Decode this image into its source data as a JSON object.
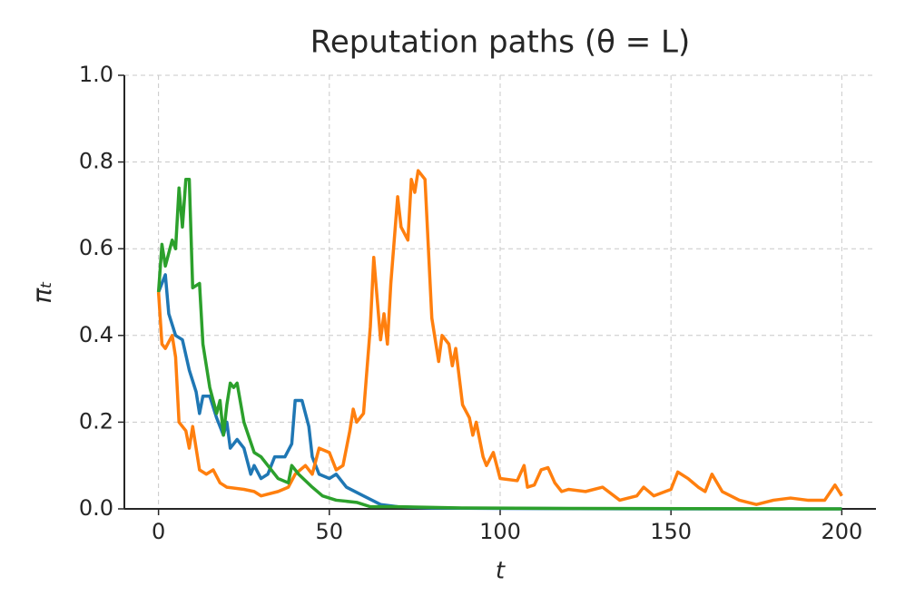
{
  "chart_data": {
    "type": "line",
    "title": "Reputation paths (θ = L)",
    "xlabel": "t",
    "ylabel": "πₜ",
    "xlim": [
      -10,
      210
    ],
    "ylim": [
      0,
      1
    ],
    "xticks": [
      0,
      50,
      100,
      150,
      200
    ],
    "yticks": [
      {
        "value": 0,
        "label": "0.0"
      },
      {
        "value": 0.2,
        "label": "0.2"
      },
      {
        "value": 0.4,
        "label": "0.4"
      },
      {
        "value": 0.6,
        "label": "0.6"
      },
      {
        "value": 0.8,
        "label": "0.8"
      },
      {
        "value": 1,
        "label": "1.0"
      }
    ],
    "grid": true,
    "series": [
      {
        "color": "#1f77b4",
        "x": [
          0,
          2,
          3,
          5,
          7,
          9,
          11,
          12,
          13,
          15,
          17,
          19,
          20,
          21,
          23,
          25,
          27,
          28,
          30,
          32,
          34,
          37,
          39,
          40,
          42,
          44,
          45,
          47,
          50,
          52,
          55,
          60,
          65,
          70,
          80,
          100,
          150,
          200
        ],
        "values": [
          0.5,
          0.54,
          0.45,
          0.4,
          0.39,
          0.32,
          0.27,
          0.22,
          0.26,
          0.26,
          0.21,
          0.17,
          0.2,
          0.14,
          0.16,
          0.14,
          0.08,
          0.1,
          0.07,
          0.08,
          0.12,
          0.12,
          0.15,
          0.25,
          0.25,
          0.19,
          0.12,
          0.08,
          0.07,
          0.08,
          0.05,
          0.03,
          0.01,
          0.005,
          0.002,
          0.001,
          0,
          0
        ]
      },
      {
        "color": "#ff7f0e",
        "x": [
          0,
          1,
          2,
          4,
          5,
          6,
          8,
          9,
          10,
          11,
          12,
          14,
          16,
          18,
          20,
          25,
          28,
          30,
          35,
          38,
          40,
          43,
          45,
          47,
          50,
          52,
          54,
          56,
          57,
          58,
          60,
          62,
          63,
          65,
          66,
          67,
          68,
          70,
          71,
          73,
          74,
          75,
          76,
          78,
          80,
          81,
          82,
          83,
          85,
          86,
          87,
          89,
          91,
          92,
          93,
          95,
          96,
          98,
          100,
          105,
          107,
          108,
          110,
          112,
          114,
          116,
          118,
          120,
          125,
          130,
          135,
          140,
          142,
          145,
          150,
          152,
          155,
          158,
          160,
          162,
          165,
          170,
          175,
          180,
          185,
          190,
          195,
          198,
          200
        ],
        "values": [
          0.5,
          0.38,
          0.37,
          0.4,
          0.35,
          0.2,
          0.18,
          0.14,
          0.19,
          0.14,
          0.09,
          0.08,
          0.09,
          0.06,
          0.05,
          0.045,
          0.04,
          0.03,
          0.04,
          0.05,
          0.08,
          0.1,
          0.08,
          0.14,
          0.13,
          0.09,
          0.1,
          0.18,
          0.23,
          0.2,
          0.22,
          0.42,
          0.58,
          0.39,
          0.45,
          0.38,
          0.52,
          0.72,
          0.65,
          0.62,
          0.76,
          0.73,
          0.78,
          0.76,
          0.44,
          0.39,
          0.34,
          0.4,
          0.38,
          0.33,
          0.37,
          0.24,
          0.21,
          0.17,
          0.2,
          0.12,
          0.1,
          0.13,
          0.07,
          0.065,
          0.1,
          0.05,
          0.055,
          0.09,
          0.095,
          0.06,
          0.04,
          0.045,
          0.04,
          0.05,
          0.02,
          0.03,
          0.05,
          0.03,
          0.045,
          0.085,
          0.07,
          0.05,
          0.04,
          0.08,
          0.04,
          0.02,
          0.01,
          0.02,
          0.025,
          0.02,
          0.02,
          0.055,
          0.03
        ]
      },
      {
        "color": "#2ca02c",
        "x": [
          0,
          1,
          2,
          4,
          5,
          6,
          7,
          8,
          9,
          10,
          12,
          13,
          15,
          17,
          18,
          19,
          20,
          21,
          22,
          23,
          25,
          28,
          30,
          35,
          38,
          39,
          41,
          45,
          48,
          52,
          58,
          62,
          70,
          90,
          120,
          200
        ],
        "values": [
          0.5,
          0.61,
          0.56,
          0.62,
          0.6,
          0.74,
          0.65,
          0.76,
          0.76,
          0.51,
          0.52,
          0.38,
          0.28,
          0.22,
          0.25,
          0.17,
          0.24,
          0.29,
          0.28,
          0.29,
          0.2,
          0.13,
          0.12,
          0.07,
          0.06,
          0.1,
          0.08,
          0.05,
          0.03,
          0.02,
          0.015,
          0.005,
          0.005,
          0.002,
          0.001,
          0
        ]
      }
    ]
  }
}
